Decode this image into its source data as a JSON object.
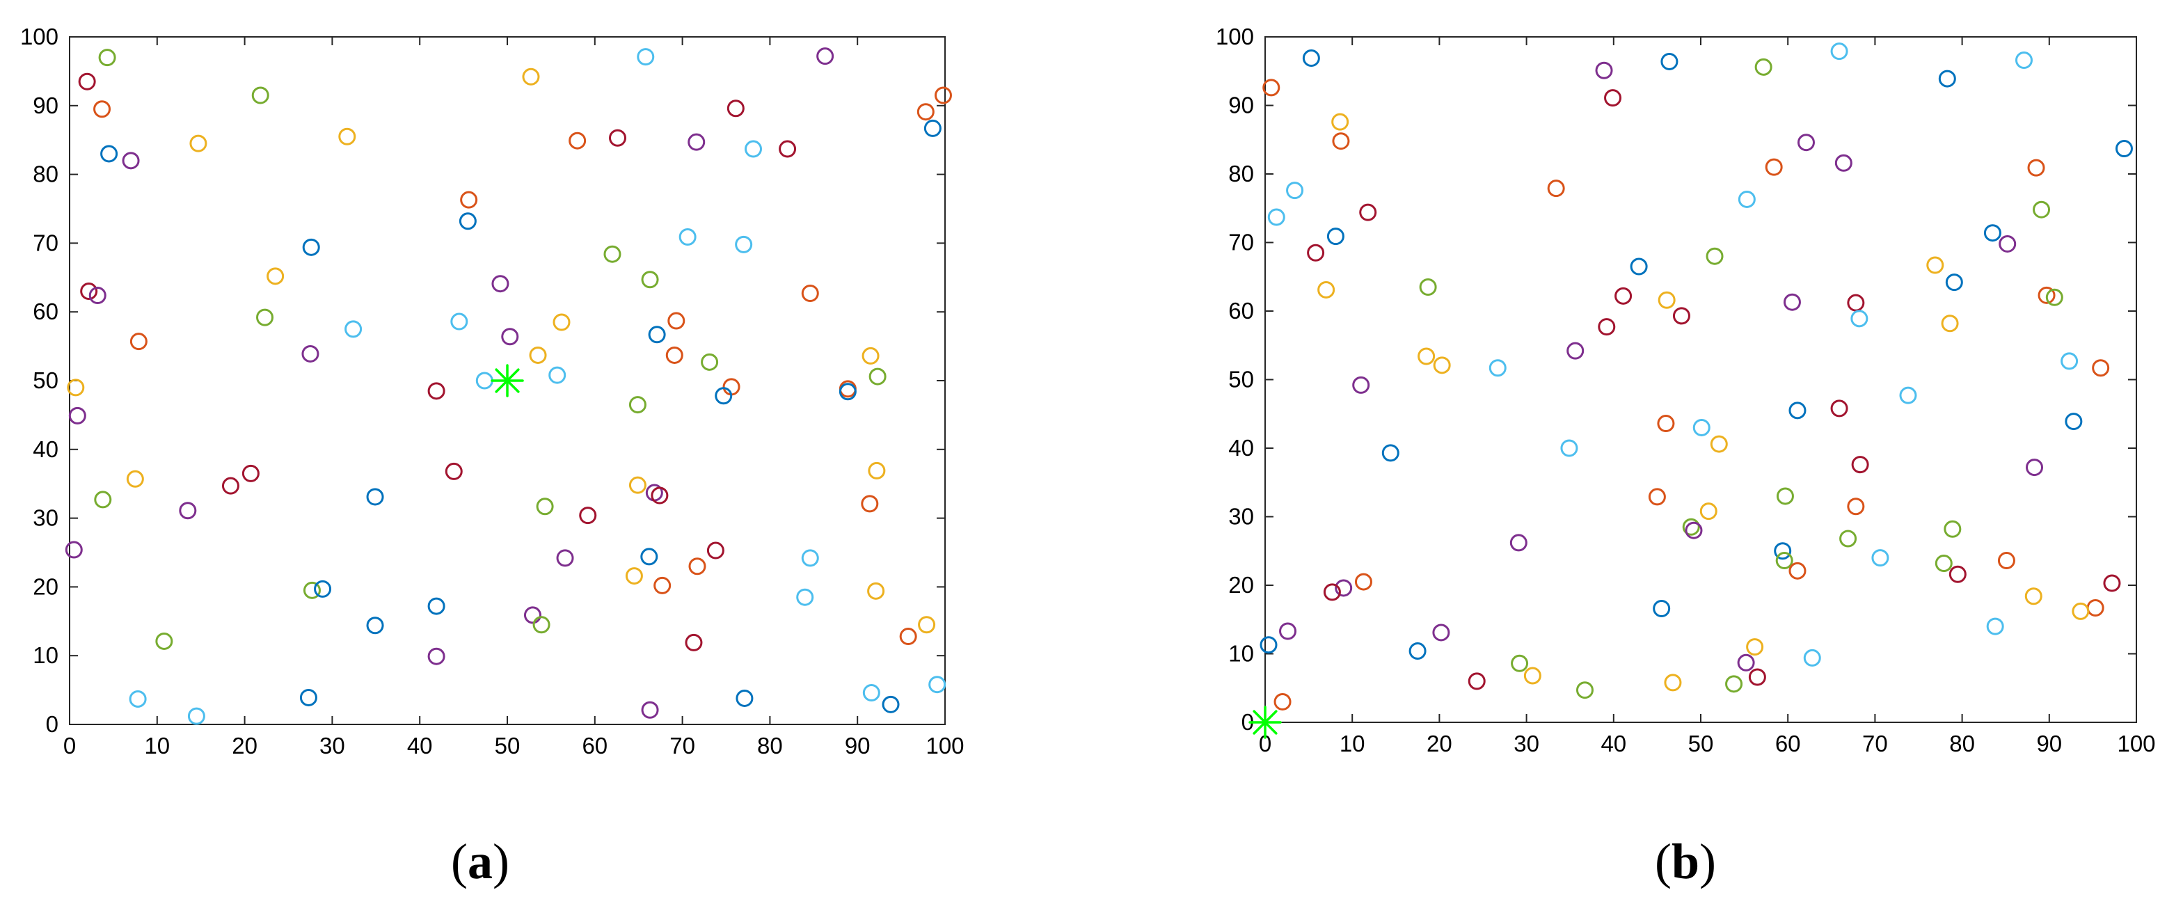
{
  "chart_data": [
    {
      "type": "scatter",
      "panel_label": "a",
      "title": "",
      "xlabel": "",
      "ylabel": "",
      "xlim": [
        0,
        100
      ],
      "ylim": [
        0,
        100
      ],
      "xticks": [
        "0",
        "10",
        "20",
        "30",
        "40",
        "50",
        "60",
        "70",
        "80",
        "90",
        "100"
      ],
      "yticks": [
        "0",
        "10",
        "20",
        "30",
        "40",
        "50",
        "60",
        "70",
        "80",
        "90",
        "100"
      ],
      "grid": false,
      "legend": "none",
      "marker": "open-circle",
      "series_colors": {
        "blue": "#0072BD",
        "orange": "#D95319",
        "yellow": "#EDB120",
        "purple": "#7E2F8E",
        "green": "#77AC30",
        "cyan": "#4DBEEE",
        "darkred": "#A2142F"
      },
      "special_point": {
        "x": 50,
        "y": 50,
        "marker": "asterisk",
        "color": "#00FF00"
      },
      "points": [
        {
          "x": 2,
          "y": 93.5,
          "c": "darkred"
        },
        {
          "x": 4.3,
          "y": 97,
          "c": "green"
        },
        {
          "x": 3.7,
          "y": 89.5,
          "c": "orange"
        },
        {
          "x": 4.5,
          "y": 83,
          "c": "blue"
        },
        {
          "x": 7,
          "y": 82,
          "c": "purple"
        },
        {
          "x": 14.7,
          "y": 84.5,
          "c": "yellow"
        },
        {
          "x": 21.8,
          "y": 91.5,
          "c": "green"
        },
        {
          "x": 31.7,
          "y": 85.5,
          "c": "yellow"
        },
        {
          "x": 52.7,
          "y": 94.2,
          "c": "yellow"
        },
        {
          "x": 65.8,
          "y": 97.1,
          "c": "cyan"
        },
        {
          "x": 86.3,
          "y": 97.2,
          "c": "purple"
        },
        {
          "x": 99.8,
          "y": 91.5,
          "c": "orange"
        },
        {
          "x": 97.8,
          "y": 89.1,
          "c": "orange"
        },
        {
          "x": 98.6,
          "y": 86.7,
          "c": "blue"
        },
        {
          "x": 76.1,
          "y": 89.6,
          "c": "darkred"
        },
        {
          "x": 71.6,
          "y": 84.7,
          "c": "purple"
        },
        {
          "x": 78.1,
          "y": 83.7,
          "c": "cyan"
        },
        {
          "x": 82,
          "y": 83.7,
          "c": "darkred"
        },
        {
          "x": 58,
          "y": 84.9,
          "c": "orange"
        },
        {
          "x": 62.6,
          "y": 85.3,
          "c": "darkred"
        },
        {
          "x": 45.6,
          "y": 76.3,
          "c": "orange"
        },
        {
          "x": 45.5,
          "y": 73.2,
          "c": "blue"
        },
        {
          "x": 27.6,
          "y": 69.4,
          "c": "blue"
        },
        {
          "x": 70.6,
          "y": 70.9,
          "c": "cyan"
        },
        {
          "x": 77,
          "y": 69.8,
          "c": "cyan"
        },
        {
          "x": 62,
          "y": 68.4,
          "c": "green"
        },
        {
          "x": 23.5,
          "y": 65.2,
          "c": "yellow"
        },
        {
          "x": 2.2,
          "y": 63,
          "c": "darkred"
        },
        {
          "x": 3.2,
          "y": 62.4,
          "c": "purple"
        },
        {
          "x": 49.2,
          "y": 64.1,
          "c": "purple"
        },
        {
          "x": 66.3,
          "y": 64.7,
          "c": "green"
        },
        {
          "x": 84.6,
          "y": 62.7,
          "c": "orange"
        },
        {
          "x": 22.3,
          "y": 59.2,
          "c": "green"
        },
        {
          "x": 32.4,
          "y": 57.5,
          "c": "cyan"
        },
        {
          "x": 44.5,
          "y": 58.6,
          "c": "cyan"
        },
        {
          "x": 56.2,
          "y": 58.5,
          "c": "yellow"
        },
        {
          "x": 69.3,
          "y": 58.7,
          "c": "orange"
        },
        {
          "x": 67.1,
          "y": 56.7,
          "c": "blue"
        },
        {
          "x": 50.3,
          "y": 56.4,
          "c": "purple"
        },
        {
          "x": 7.9,
          "y": 55.7,
          "c": "orange"
        },
        {
          "x": 27.5,
          "y": 53.9,
          "c": "purple"
        },
        {
          "x": 53.5,
          "y": 53.7,
          "c": "yellow"
        },
        {
          "x": 69.1,
          "y": 53.7,
          "c": "orange"
        },
        {
          "x": 73.1,
          "y": 52.7,
          "c": "green"
        },
        {
          "x": 91.5,
          "y": 53.6,
          "c": "yellow"
        },
        {
          "x": 92.3,
          "y": 50.6,
          "c": "green"
        },
        {
          "x": 55.7,
          "y": 50.8,
          "c": "cyan"
        },
        {
          "x": 47.4,
          "y": 50,
          "c": "cyan"
        },
        {
          "x": 0.7,
          "y": 49,
          "c": "yellow"
        },
        {
          "x": 41.9,
          "y": 48.5,
          "c": "darkred"
        },
        {
          "x": 75.6,
          "y": 49.1,
          "c": "orange"
        },
        {
          "x": 74.7,
          "y": 47.8,
          "c": "blue"
        },
        {
          "x": 88.9,
          "y": 48.8,
          "c": "orange"
        },
        {
          "x": 88.9,
          "y": 48.4,
          "c": "blue"
        },
        {
          "x": 64.9,
          "y": 46.5,
          "c": "green"
        },
        {
          "x": 0.9,
          "y": 44.9,
          "c": "purple"
        },
        {
          "x": 43.9,
          "y": 36.8,
          "c": "darkred"
        },
        {
          "x": 7.5,
          "y": 35.7,
          "c": "yellow"
        },
        {
          "x": 20.7,
          "y": 36.5,
          "c": "darkred"
        },
        {
          "x": 18.4,
          "y": 34.7,
          "c": "darkred"
        },
        {
          "x": 92.2,
          "y": 36.9,
          "c": "yellow"
        },
        {
          "x": 64.9,
          "y": 34.8,
          "c": "yellow"
        },
        {
          "x": 66.8,
          "y": 33.7,
          "c": "purple"
        },
        {
          "x": 67.4,
          "y": 33.3,
          "c": "darkred"
        },
        {
          "x": 34.9,
          "y": 33.1,
          "c": "blue"
        },
        {
          "x": 3.8,
          "y": 32.7,
          "c": "green"
        },
        {
          "x": 13.5,
          "y": 31.1,
          "c": "purple"
        },
        {
          "x": 54.3,
          "y": 31.7,
          "c": "green"
        },
        {
          "x": 59.2,
          "y": 30.4,
          "c": "darkred"
        },
        {
          "x": 91.4,
          "y": 32.1,
          "c": "orange"
        },
        {
          "x": 0.5,
          "y": 25.4,
          "c": "purple"
        },
        {
          "x": 56.6,
          "y": 24.2,
          "c": "purple"
        },
        {
          "x": 66.2,
          "y": 24.4,
          "c": "blue"
        },
        {
          "x": 73.8,
          "y": 25.3,
          "c": "darkred"
        },
        {
          "x": 84.6,
          "y": 24.2,
          "c": "cyan"
        },
        {
          "x": 71.7,
          "y": 23,
          "c": "orange"
        },
        {
          "x": 64.5,
          "y": 21.6,
          "c": "yellow"
        },
        {
          "x": 67.7,
          "y": 20.2,
          "c": "orange"
        },
        {
          "x": 27.7,
          "y": 19.5,
          "c": "green"
        },
        {
          "x": 28.9,
          "y": 19.7,
          "c": "blue"
        },
        {
          "x": 92.1,
          "y": 19.4,
          "c": "yellow"
        },
        {
          "x": 84,
          "y": 18.5,
          "c": "cyan"
        },
        {
          "x": 41.9,
          "y": 17.2,
          "c": "blue"
        },
        {
          "x": 52.9,
          "y": 15.9,
          "c": "purple"
        },
        {
          "x": 53.9,
          "y": 14.5,
          "c": "green"
        },
        {
          "x": 34.9,
          "y": 14.4,
          "c": "blue"
        },
        {
          "x": 97.9,
          "y": 14.5,
          "c": "yellow"
        },
        {
          "x": 95.8,
          "y": 12.8,
          "c": "orange"
        },
        {
          "x": 10.8,
          "y": 12.1,
          "c": "green"
        },
        {
          "x": 71.3,
          "y": 11.9,
          "c": "darkred"
        },
        {
          "x": 41.9,
          "y": 9.9,
          "c": "purple"
        },
        {
          "x": 7.8,
          "y": 3.7,
          "c": "cyan"
        },
        {
          "x": 27.3,
          "y": 3.9,
          "c": "blue"
        },
        {
          "x": 14.5,
          "y": 1.2,
          "c": "cyan"
        },
        {
          "x": 77.1,
          "y": 3.8,
          "c": "blue"
        },
        {
          "x": 91.6,
          "y": 4.6,
          "c": "cyan"
        },
        {
          "x": 93.8,
          "y": 2.9,
          "c": "blue"
        },
        {
          "x": 99.1,
          "y": 5.8,
          "c": "cyan"
        },
        {
          "x": 66.3,
          "y": 2.1,
          "c": "purple"
        }
      ]
    },
    {
      "type": "scatter",
      "panel_label": "b",
      "title": "",
      "xlabel": "",
      "ylabel": "",
      "xlim": [
        0,
        100
      ],
      "ylim": [
        0,
        100
      ],
      "xticks": [
        "0",
        "10",
        "20",
        "30",
        "40",
        "50",
        "60",
        "70",
        "80",
        "90",
        "100"
      ],
      "yticks": [
        "0",
        "10",
        "20",
        "30",
        "40",
        "50",
        "60",
        "70",
        "80",
        "90",
        "100"
      ],
      "grid": false,
      "legend": "none",
      "marker": "open-circle",
      "series_colors": {
        "blue": "#0072BD",
        "orange": "#D95319",
        "yellow": "#EDB120",
        "purple": "#7E2F8E",
        "green": "#77AC30",
        "cyan": "#4DBEEE",
        "darkred": "#A2142F"
      },
      "special_point": {
        "x": 0,
        "y": 0,
        "marker": "asterisk",
        "color": "#00FF00"
      },
      "points": [
        {
          "x": 0.7,
          "y": 92.6,
          "c": "orange"
        },
        {
          "x": 5.3,
          "y": 96.9,
          "c": "blue"
        },
        {
          "x": 8.6,
          "y": 87.6,
          "c": "yellow"
        },
        {
          "x": 8.7,
          "y": 84.8,
          "c": "orange"
        },
        {
          "x": 3.4,
          "y": 77.6,
          "c": "cyan"
        },
        {
          "x": 1.3,
          "y": 73.7,
          "c": "cyan"
        },
        {
          "x": 8.1,
          "y": 70.9,
          "c": "blue"
        },
        {
          "x": 11.8,
          "y": 74.4,
          "c": "darkred"
        },
        {
          "x": 5.8,
          "y": 68.5,
          "c": "darkred"
        },
        {
          "x": 7,
          "y": 63.1,
          "c": "yellow"
        },
        {
          "x": 38.9,
          "y": 95.1,
          "c": "purple"
        },
        {
          "x": 39.9,
          "y": 91.1,
          "c": "darkred"
        },
        {
          "x": 46.4,
          "y": 96.4,
          "c": "blue"
        },
        {
          "x": 57.2,
          "y": 95.6,
          "c": "green"
        },
        {
          "x": 65.9,
          "y": 97.9,
          "c": "cyan"
        },
        {
          "x": 87.1,
          "y": 96.6,
          "c": "cyan"
        },
        {
          "x": 78.3,
          "y": 93.9,
          "c": "blue"
        },
        {
          "x": 62.1,
          "y": 84.6,
          "c": "purple"
        },
        {
          "x": 58.4,
          "y": 81,
          "c": "orange"
        },
        {
          "x": 66.4,
          "y": 81.6,
          "c": "purple"
        },
        {
          "x": 88.5,
          "y": 80.9,
          "c": "orange"
        },
        {
          "x": 98.6,
          "y": 83.7,
          "c": "blue"
        },
        {
          "x": 33.4,
          "y": 77.9,
          "c": "orange"
        },
        {
          "x": 55.3,
          "y": 76.3,
          "c": "cyan"
        },
        {
          "x": 89.1,
          "y": 74.8,
          "c": "green"
        },
        {
          "x": 83.5,
          "y": 71.4,
          "c": "blue"
        },
        {
          "x": 85.2,
          "y": 69.8,
          "c": "purple"
        },
        {
          "x": 51.6,
          "y": 68,
          "c": "green"
        },
        {
          "x": 76.9,
          "y": 66.7,
          "c": "yellow"
        },
        {
          "x": 42.9,
          "y": 66.5,
          "c": "blue"
        },
        {
          "x": 79.1,
          "y": 64.2,
          "c": "blue"
        },
        {
          "x": 18.7,
          "y": 63.5,
          "c": "green"
        },
        {
          "x": 89.7,
          "y": 62.3,
          "c": "orange"
        },
        {
          "x": 90.6,
          "y": 62,
          "c": "green"
        },
        {
          "x": 41.1,
          "y": 62.2,
          "c": "darkred"
        },
        {
          "x": 46.1,
          "y": 61.6,
          "c": "yellow"
        },
        {
          "x": 60.5,
          "y": 61.3,
          "c": "purple"
        },
        {
          "x": 67.8,
          "y": 61.2,
          "c": "darkred"
        },
        {
          "x": 47.8,
          "y": 59.3,
          "c": "darkred"
        },
        {
          "x": 68.2,
          "y": 58.9,
          "c": "cyan"
        },
        {
          "x": 78.6,
          "y": 58.2,
          "c": "yellow"
        },
        {
          "x": 39.2,
          "y": 57.7,
          "c": "darkred"
        },
        {
          "x": 35.6,
          "y": 54.2,
          "c": "purple"
        },
        {
          "x": 18.5,
          "y": 53.4,
          "c": "yellow"
        },
        {
          "x": 20.3,
          "y": 52.1,
          "c": "yellow"
        },
        {
          "x": 26.7,
          "y": 51.7,
          "c": "cyan"
        },
        {
          "x": 92.3,
          "y": 52.7,
          "c": "cyan"
        },
        {
          "x": 95.9,
          "y": 51.7,
          "c": "orange"
        },
        {
          "x": 11,
          "y": 49.2,
          "c": "purple"
        },
        {
          "x": 73.8,
          "y": 47.7,
          "c": "cyan"
        },
        {
          "x": 61.1,
          "y": 45.5,
          "c": "blue"
        },
        {
          "x": 65.9,
          "y": 45.8,
          "c": "darkred"
        },
        {
          "x": 92.8,
          "y": 43.9,
          "c": "blue"
        },
        {
          "x": 46,
          "y": 43.6,
          "c": "orange"
        },
        {
          "x": 50.1,
          "y": 43,
          "c": "cyan"
        },
        {
          "x": 52.1,
          "y": 40.6,
          "c": "yellow"
        },
        {
          "x": 34.9,
          "y": 40,
          "c": "cyan"
        },
        {
          "x": 14.4,
          "y": 39.3,
          "c": "blue"
        },
        {
          "x": 68.3,
          "y": 37.6,
          "c": "darkred"
        },
        {
          "x": 88.3,
          "y": 37.2,
          "c": "purple"
        },
        {
          "x": 59.7,
          "y": 33,
          "c": "green"
        },
        {
          "x": 45,
          "y": 32.9,
          "c": "orange"
        },
        {
          "x": 67.8,
          "y": 31.5,
          "c": "orange"
        },
        {
          "x": 50.9,
          "y": 30.8,
          "c": "yellow"
        },
        {
          "x": 48.9,
          "y": 28.5,
          "c": "green"
        },
        {
          "x": 49.2,
          "y": 28,
          "c": "purple"
        },
        {
          "x": 78.9,
          "y": 28.2,
          "c": "green"
        },
        {
          "x": 66.9,
          "y": 26.8,
          "c": "green"
        },
        {
          "x": 29.1,
          "y": 26.2,
          "c": "purple"
        },
        {
          "x": 59.4,
          "y": 25,
          "c": "blue"
        },
        {
          "x": 59.6,
          "y": 23.6,
          "c": "green"
        },
        {
          "x": 70.6,
          "y": 24,
          "c": "cyan"
        },
        {
          "x": 77.9,
          "y": 23.2,
          "c": "green"
        },
        {
          "x": 85.1,
          "y": 23.6,
          "c": "orange"
        },
        {
          "x": 61.1,
          "y": 22.1,
          "c": "orange"
        },
        {
          "x": 79.5,
          "y": 21.6,
          "c": "darkred"
        },
        {
          "x": 97.2,
          "y": 20.3,
          "c": "darkred"
        },
        {
          "x": 11.3,
          "y": 20.5,
          "c": "orange"
        },
        {
          "x": 9,
          "y": 19.6,
          "c": "purple"
        },
        {
          "x": 7.7,
          "y": 19,
          "c": "darkred"
        },
        {
          "x": 88.2,
          "y": 18.4,
          "c": "yellow"
        },
        {
          "x": 45.5,
          "y": 16.6,
          "c": "blue"
        },
        {
          "x": 95.3,
          "y": 16.7,
          "c": "orange"
        },
        {
          "x": 93.6,
          "y": 16.2,
          "c": "yellow"
        },
        {
          "x": 83.8,
          "y": 14,
          "c": "cyan"
        },
        {
          "x": 2.6,
          "y": 13.3,
          "c": "purple"
        },
        {
          "x": 20.2,
          "y": 13.1,
          "c": "purple"
        },
        {
          "x": 0.4,
          "y": 11.3,
          "c": "blue"
        },
        {
          "x": 56.2,
          "y": 11,
          "c": "yellow"
        },
        {
          "x": 17.5,
          "y": 10.4,
          "c": "blue"
        },
        {
          "x": 62.8,
          "y": 9.4,
          "c": "cyan"
        },
        {
          "x": 55.2,
          "y": 8.7,
          "c": "purple"
        },
        {
          "x": 29.2,
          "y": 8.6,
          "c": "green"
        },
        {
          "x": 30.7,
          "y": 6.8,
          "c": "yellow"
        },
        {
          "x": 56.5,
          "y": 6.6,
          "c": "darkred"
        },
        {
          "x": 24.3,
          "y": 6,
          "c": "darkred"
        },
        {
          "x": 46.8,
          "y": 5.8,
          "c": "yellow"
        },
        {
          "x": 53.8,
          "y": 5.6,
          "c": "green"
        },
        {
          "x": 36.7,
          "y": 4.7,
          "c": "green"
        },
        {
          "x": 2,
          "y": 3,
          "c": "orange"
        }
      ]
    }
  ]
}
